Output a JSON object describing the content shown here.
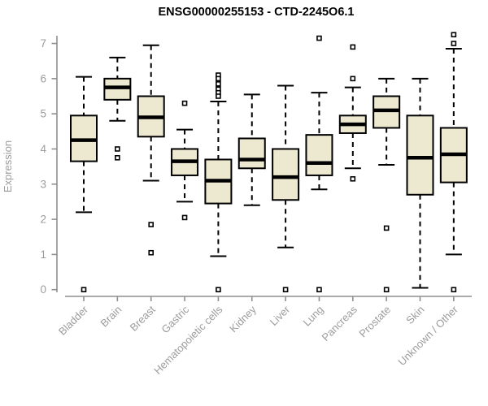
{
  "chart_data": {
    "type": "boxplot",
    "title": "ENSG00000255153 - CTD-2245O6.1",
    "ylabel": "Expression",
    "ylim": [
      0,
      7.3
    ],
    "yticks": [
      0,
      1,
      2,
      3,
      4,
      5,
      6,
      7
    ],
    "grid": false,
    "legend": "none",
    "categories": [
      "Bladder",
      "Brain",
      "Breast",
      "Gastric",
      "Hematopoietic cells",
      "Kidney",
      "Liver",
      "Lung",
      "Pancreas",
      "Prostate",
      "Skin",
      "Unknown / Other"
    ],
    "series": [
      {
        "category": "Bladder",
        "low": 2.2,
        "q1": 3.65,
        "median": 4.25,
        "q3": 4.95,
        "high": 6.05,
        "outliers": [
          0
        ]
      },
      {
        "category": "Brain",
        "low": 4.8,
        "q1": 5.4,
        "median": 5.75,
        "q3": 6.0,
        "high": 6.6,
        "outliers": [
          4.0,
          3.75
        ]
      },
      {
        "category": "Breast",
        "low": 3.1,
        "q1": 4.35,
        "median": 4.9,
        "q3": 5.5,
        "high": 6.95,
        "outliers": [
          1.85,
          1.05
        ]
      },
      {
        "category": "Gastric",
        "low": 2.5,
        "q1": 3.25,
        "median": 3.65,
        "q3": 4.0,
        "high": 4.55,
        "outliers": [
          5.3,
          2.05
        ]
      },
      {
        "category": "Hematopoietic cells",
        "low": 0.95,
        "q1": 2.45,
        "median": 3.1,
        "q3": 3.7,
        "high": 5.35,
        "outliers": [
          6.1,
          6.0,
          5.85,
          5.7,
          5.6,
          5.5,
          0
        ]
      },
      {
        "category": "Kidney",
        "low": 2.4,
        "q1": 3.45,
        "median": 3.7,
        "q3": 4.3,
        "high": 5.55,
        "outliers": []
      },
      {
        "category": "Liver",
        "low": 1.2,
        "q1": 2.55,
        "median": 3.2,
        "q3": 4.0,
        "high": 5.8,
        "outliers": [
          0
        ]
      },
      {
        "category": "Lung",
        "low": 2.85,
        "q1": 3.25,
        "median": 3.6,
        "q3": 4.4,
        "high": 5.6,
        "outliers": [
          7.15,
          0
        ]
      },
      {
        "category": "Pancreas",
        "low": 3.45,
        "q1": 4.45,
        "median": 4.7,
        "q3": 4.95,
        "high": 5.75,
        "outliers": [
          6.9,
          6.0,
          3.15
        ]
      },
      {
        "category": "Prostate",
        "low": 3.55,
        "q1": 4.6,
        "median": 5.1,
        "q3": 5.5,
        "high": 6.0,
        "outliers": [
          1.75,
          0
        ]
      },
      {
        "category": "Skin",
        "low": 0.05,
        "q1": 2.7,
        "median": 3.75,
        "q3": 4.95,
        "high": 6.0,
        "outliers": []
      },
      {
        "category": "Unknown / Other",
        "low": 1.0,
        "q1": 3.05,
        "median": 3.85,
        "q3": 4.6,
        "high": 6.85,
        "outliers": [
          7.25,
          7.0,
          0
        ]
      }
    ],
    "colors": {
      "box_fill": "#EDE8D0",
      "box_stroke": "#000000",
      "whisker": "#000000",
      "median": "#000000",
      "outlier_fill": "#ffffff",
      "axis": "#8f8f8f",
      "tick_label": "#9c9c9c",
      "title": "#000000",
      "background": "#ffffff"
    }
  }
}
